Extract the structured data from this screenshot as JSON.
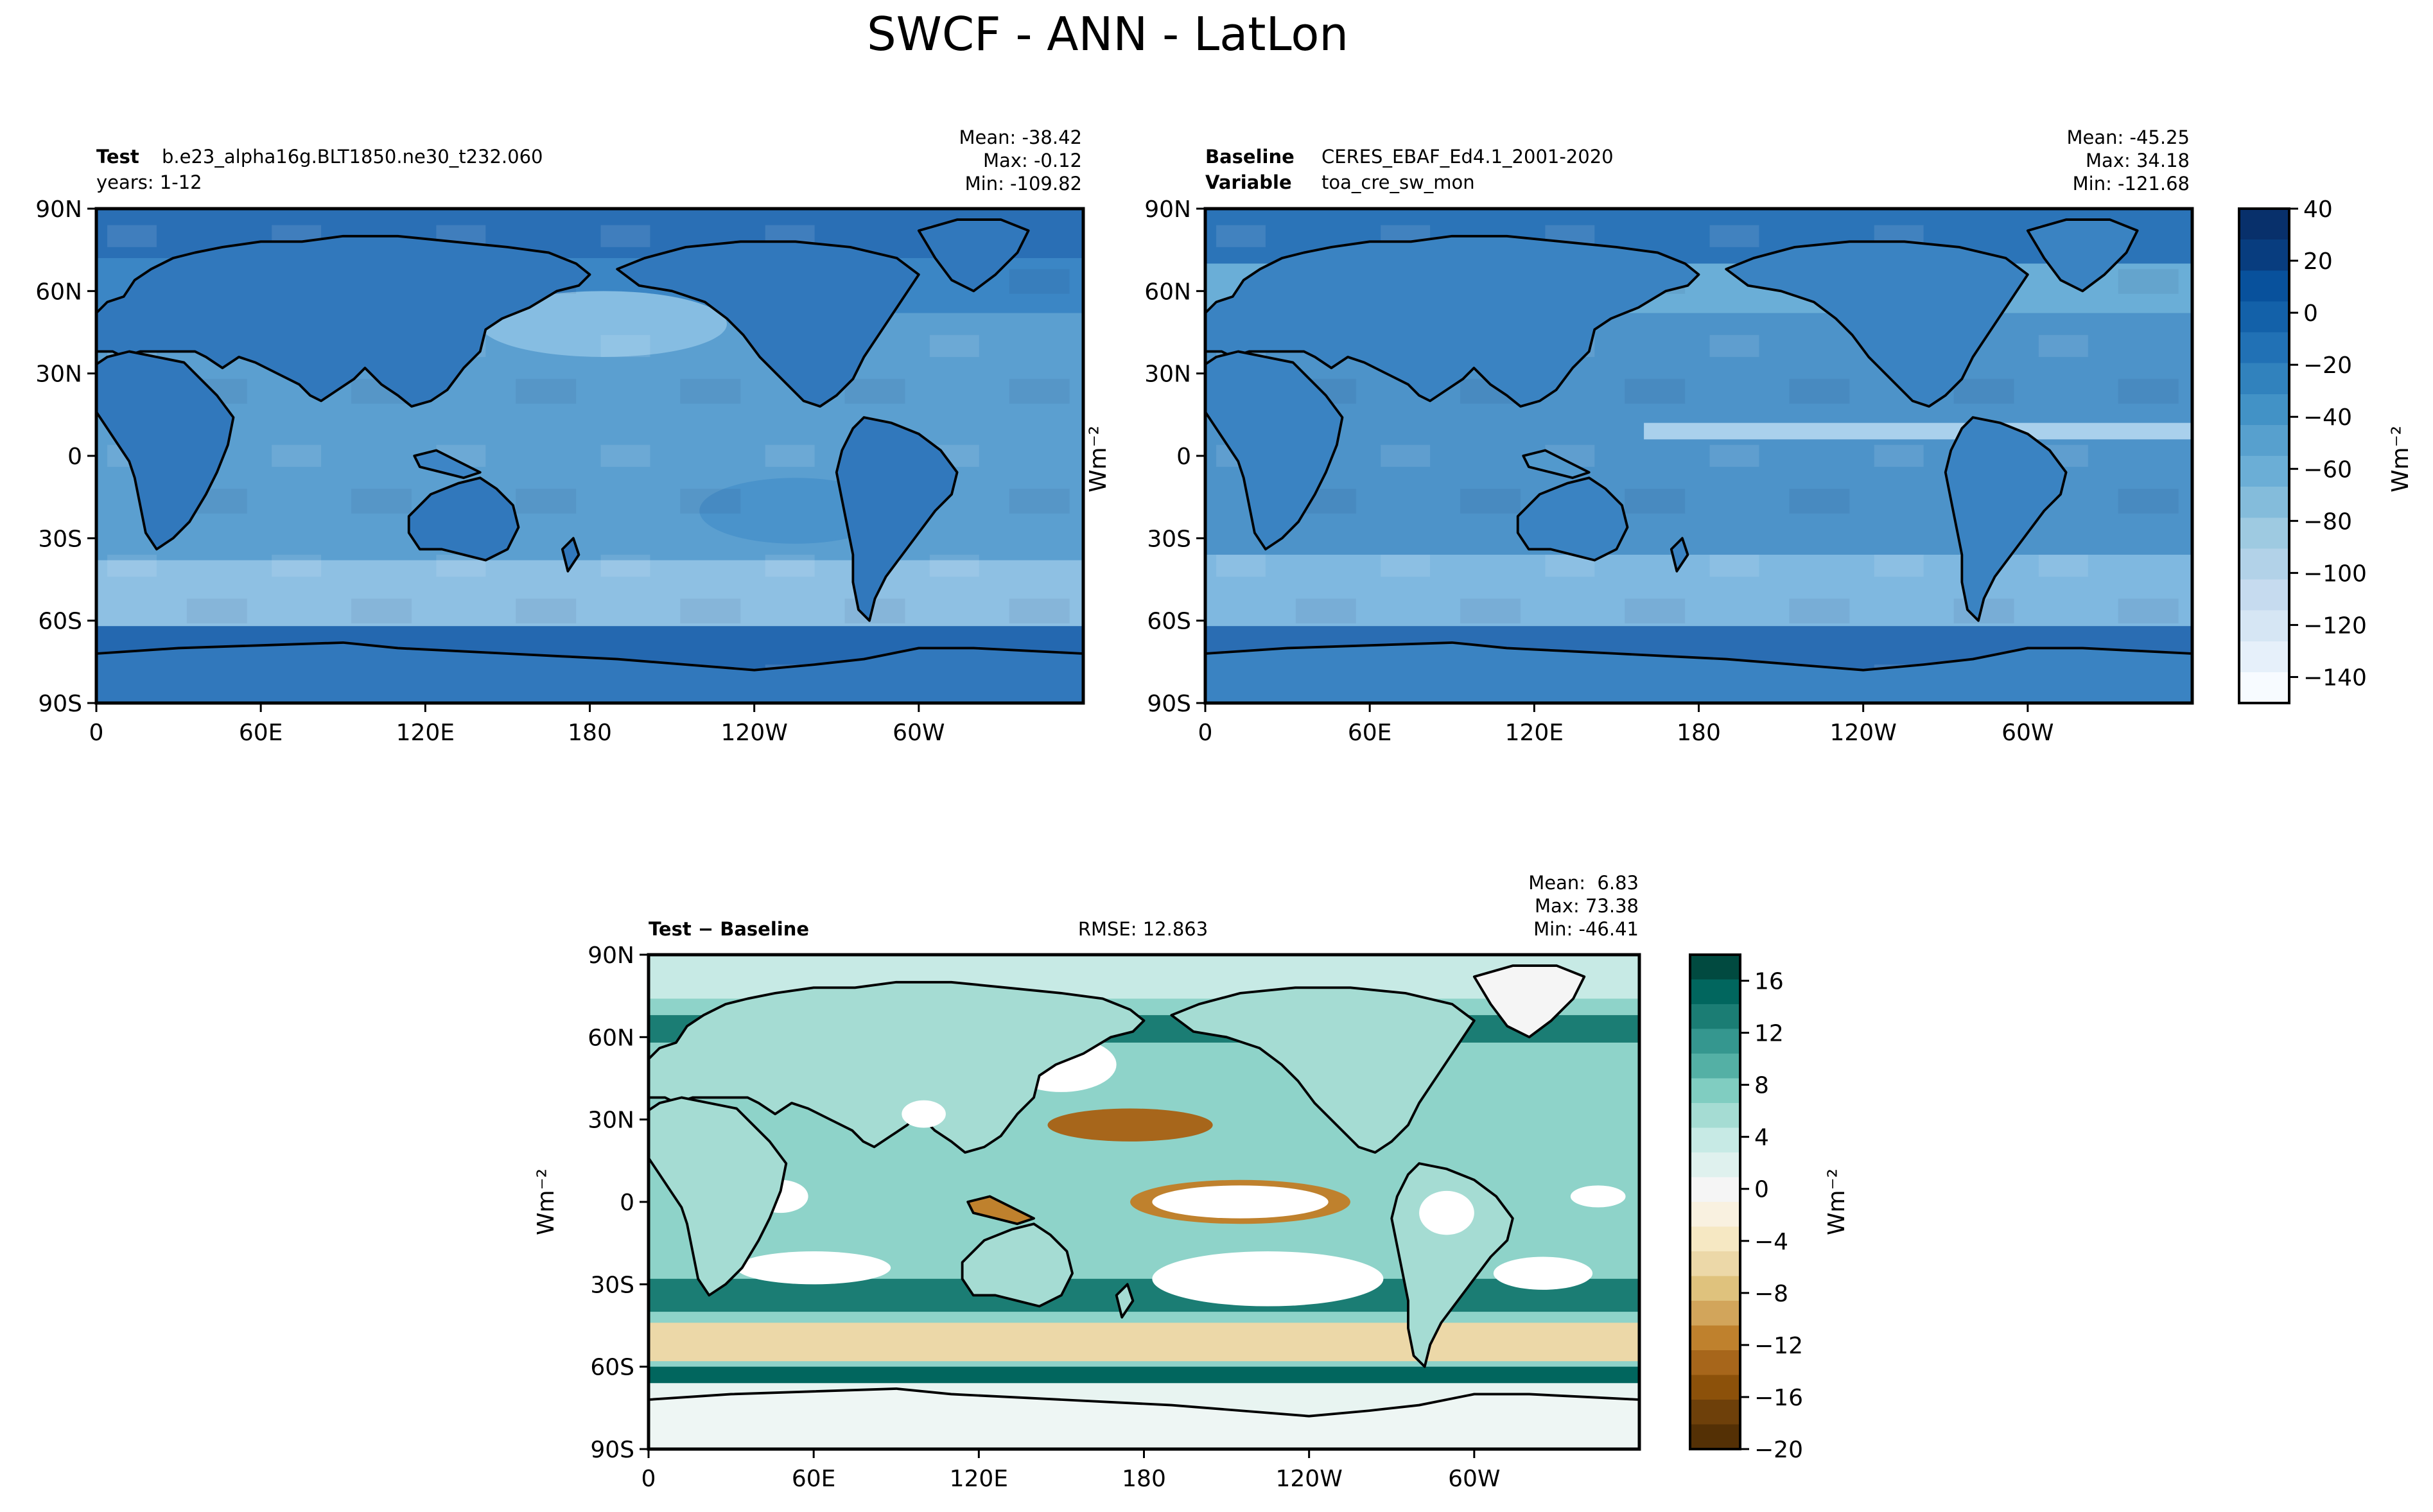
{
  "figure": {
    "title": "SWCF - ANN - LatLon"
  },
  "chart_data": [
    {
      "type": "heatmap",
      "panel": "test",
      "label_key": "Test",
      "label_value": "b.e23_alpha16g.BLT1850.ne30_t232.060",
      "label_line2": "years: 1-12",
      "stats": {
        "mean": "Mean: -38.42",
        "max": "Max: -0.12",
        "min": "Min: -109.82"
      },
      "xticks": [
        "0",
        "60E",
        "120E",
        "180",
        "120W",
        "60W"
      ],
      "yticks": [
        "90N",
        "60N",
        "30N",
        "0",
        "30S",
        "60S",
        "90S"
      ],
      "xlim": [
        0,
        360
      ],
      "ylim": [
        -90,
        90
      ],
      "colormap": "Blues_r",
      "value_range": [
        -150,
        40
      ]
    },
    {
      "type": "heatmap",
      "panel": "baseline",
      "label_key": "Baseline",
      "label_value": "CERES_EBAF_Ed4.1_2001-2020",
      "label_key2": "Variable",
      "label_value2": "toa_cre_sw_mon",
      "stats": {
        "mean": "Mean: -45.25",
        "max": "Max: 34.18",
        "min": "Min: -121.68"
      },
      "xticks": [
        "0",
        "60E",
        "120E",
        "180",
        "120W",
        "60W"
      ],
      "yticks": [
        "90N",
        "60N",
        "30N",
        "0",
        "30S",
        "60S",
        "90S"
      ],
      "ylabel": "Wm⁻²",
      "xlim": [
        0,
        360
      ],
      "ylim": [
        -90,
        90
      ],
      "colorbar": {
        "ticks": [
          "40",
          "20",
          "0",
          "−20",
          "−40",
          "−60",
          "−80",
          "−100",
          "−120",
          "−140"
        ],
        "tick_values": [
          40,
          20,
          0,
          -20,
          -40,
          -60,
          -80,
          -100,
          -120,
          -140
        ],
        "range": [
          -150,
          40
        ],
        "label": "Wm⁻²"
      }
    },
    {
      "type": "heatmap",
      "panel": "difference",
      "label_key": "Test − Baseline",
      "rmse": "RMSE: 12.863",
      "stats": {
        "mean": "Mean:  6.83",
        "max": "Max: 73.38",
        "min": "Min: -46.41"
      },
      "xticks": [
        "0",
        "60E",
        "120E",
        "180",
        "120W",
        "60W"
      ],
      "yticks": [
        "90N",
        "60N",
        "30N",
        "0",
        "30S",
        "60S",
        "90S"
      ],
      "ylabel": "Wm⁻²",
      "xlim": [
        0,
        360
      ],
      "ylim": [
        -90,
        90
      ],
      "colorbar": {
        "ticks": [
          "16",
          "12",
          "8",
          "4",
          "0",
          "−4",
          "−8",
          "−12",
          "−16",
          "−20"
        ],
        "tick_values": [
          16,
          12,
          8,
          4,
          0,
          -4,
          -8,
          -12,
          -16,
          -20
        ],
        "range": [
          -20,
          18
        ],
        "label": "Wm⁻²"
      }
    }
  ],
  "colors": {
    "blues": [
      "#f7fbff",
      "#e6f0fa",
      "#d6e6f4",
      "#c6dbef",
      "#b2d2e8",
      "#9ecae1",
      "#84bcdb",
      "#6baed6",
      "#57a0ce",
      "#4292c6",
      "#3182bd",
      "#2171b5",
      "#1361a9",
      "#08519c",
      "#083d7f",
      "#08306b"
    ],
    "diverging": [
      "#543005",
      "#6e400a",
      "#8c510a",
      "#a7661b",
      "#bf812d",
      "#d2a55b",
      "#dfc27d",
      "#ecd8a8",
      "#f6e8c3",
      "#f9f1e0",
      "#f5f5f5",
      "#dff1ee",
      "#c7eae5",
      "#a5dcd3",
      "#80cdc1",
      "#54b0a5",
      "#35978f",
      "#1b7d74",
      "#01665e",
      "#014a40"
    ],
    "ocean_test": "#5b9fd0",
    "ocean_base": "#4d93c9",
    "land_test": "#2a6fb5",
    "land_base": "#3a83c2",
    "diff_ocean": "#8ed3c9"
  }
}
